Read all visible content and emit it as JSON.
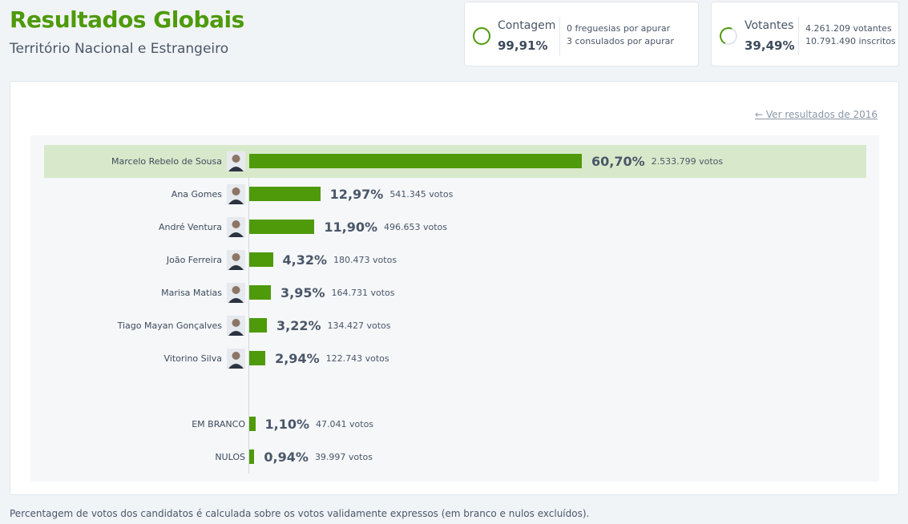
{
  "header": {
    "title": "Resultados Globais",
    "subtitle": "Território Nacional e Estrangeiro"
  },
  "contagem": {
    "label": "Contagem",
    "value": "99,91%",
    "line1": "0 freguesias por apurar",
    "line2": "3 consulados por apurar",
    "progress": 0.9991
  },
  "votantes": {
    "label": "Votantes",
    "value": "39,49%",
    "line1": "4.261.209 votantes",
    "line2": "10.791.490 inscritos",
    "progress": 0.3949
  },
  "panel": {
    "prev_link": "Ver resultados de 2016"
  },
  "colors": {
    "accent": "#4e9a0a",
    "winner_bg": "#d8e9cb"
  },
  "chart_data": {
    "type": "bar",
    "orientation": "horizontal",
    "series": [
      {
        "name": "Marcelo Rebelo de Sousa",
        "value": 60.7,
        "pct_label": "60,70%",
        "votes_label": "2.533.799 votos",
        "winner": true,
        "photo": true
      },
      {
        "name": "Ana Gomes",
        "value": 12.97,
        "pct_label": "12,97%",
        "votes_label": "541.345 votos",
        "winner": false,
        "photo": true
      },
      {
        "name": "André Ventura",
        "value": 11.9,
        "pct_label": "11,90%",
        "votes_label": "496.653 votos",
        "winner": false,
        "photo": true
      },
      {
        "name": "João Ferreira",
        "value": 4.32,
        "pct_label": "4,32%",
        "votes_label": "180.473 votos",
        "winner": false,
        "photo": true
      },
      {
        "name": "Marisa Matias",
        "value": 3.95,
        "pct_label": "3,95%",
        "votes_label": "164.731 votos",
        "winner": false,
        "photo": true
      },
      {
        "name": "Tiago Mayan Gonçalves",
        "value": 3.22,
        "pct_label": "3,22%",
        "votes_label": "134.427 votos",
        "winner": false,
        "photo": true
      },
      {
        "name": "Vitorino Silva",
        "value": 2.94,
        "pct_label": "2,94%",
        "votes_label": "122.743 votos",
        "winner": false,
        "photo": true
      }
    ],
    "extra": [
      {
        "name": "EM BRANCO",
        "value": 1.1,
        "pct_label": "1,10%",
        "votes_label": "47.041 votos"
      },
      {
        "name": "NULOS",
        "value": 0.94,
        "pct_label": "0,94%",
        "votes_label": "39.997 votos"
      }
    ],
    "xlim": [
      0,
      60.7
    ]
  },
  "footnote": "Percentagem de votos dos candidatos é calculada sobre os votos validamente expressos (em branco e nulos excluídos)."
}
